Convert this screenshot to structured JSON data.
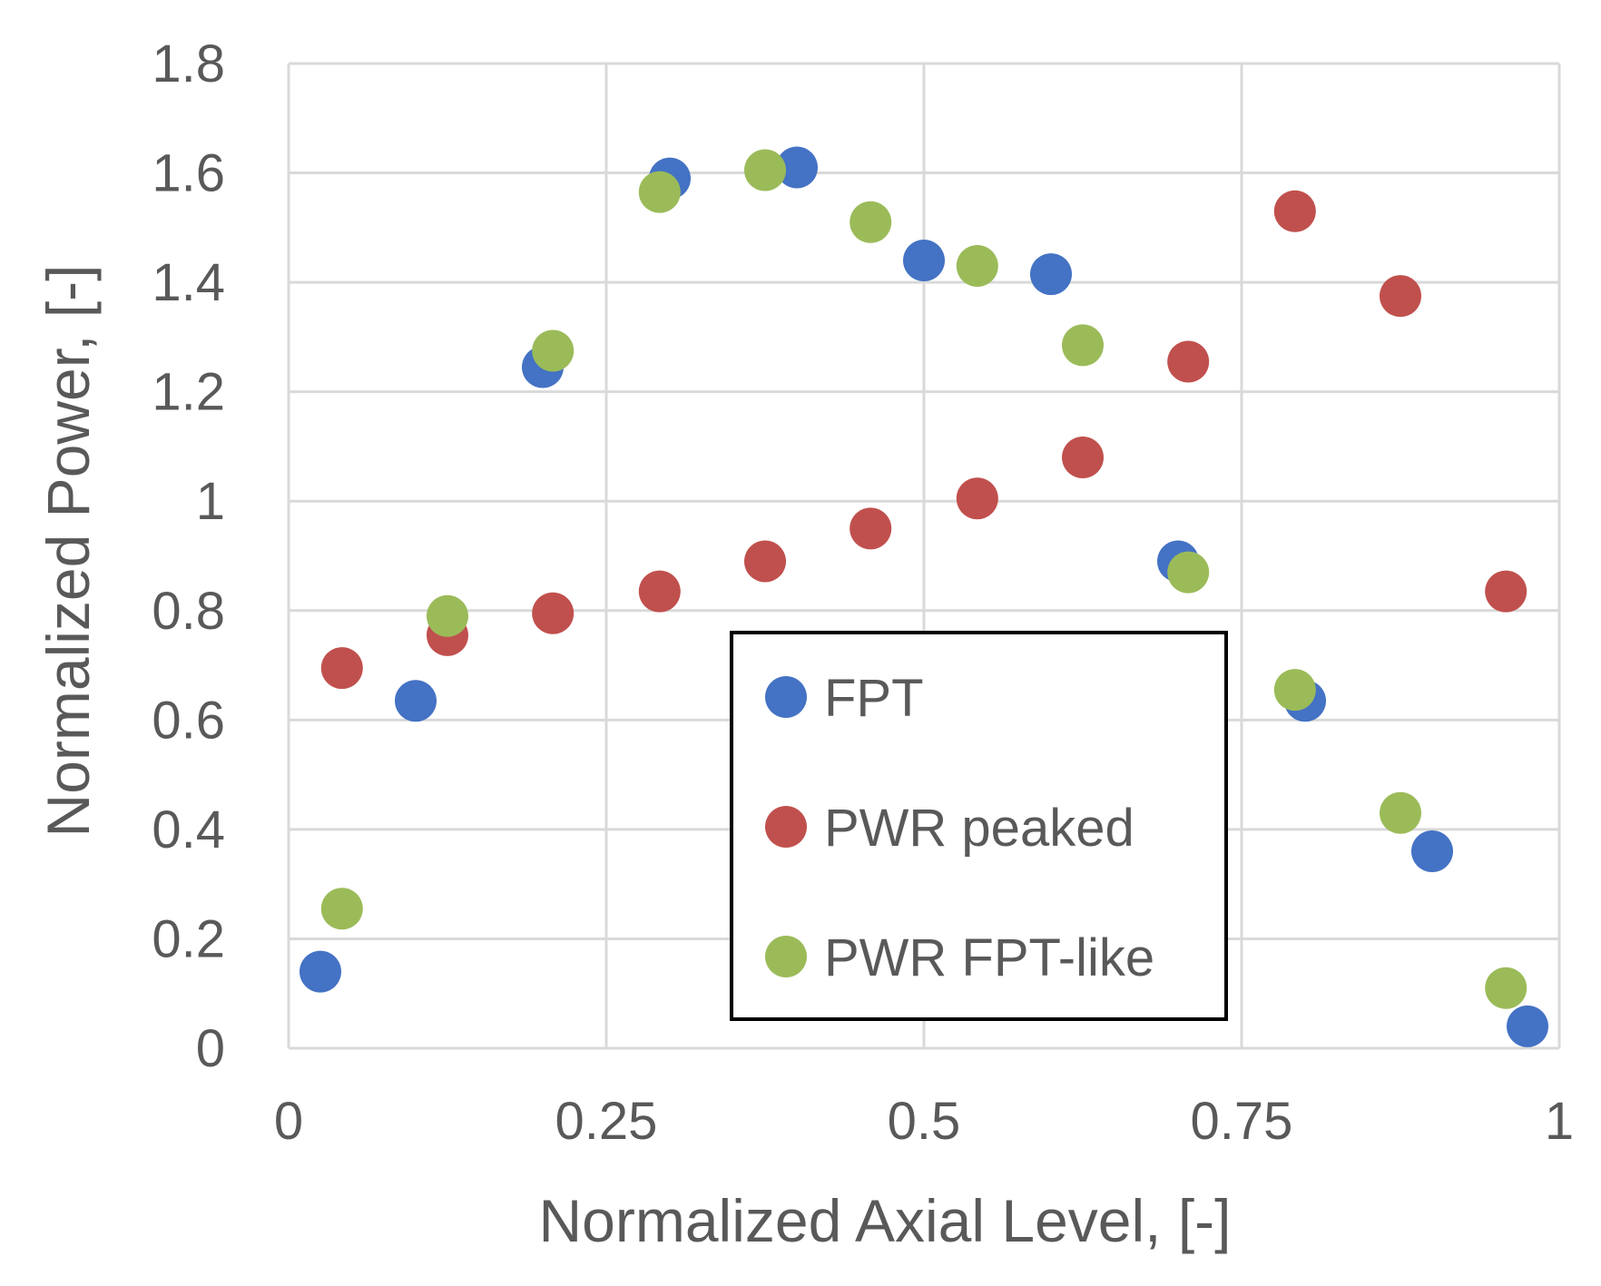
{
  "chart_data": {
    "type": "scatter",
    "title": "",
    "xlabel": "Normalized Axial Level, [-]",
    "ylabel": "Normalized Power, [-]",
    "xlim": [
      0,
      1
    ],
    "ylim": [
      0,
      1.8
    ],
    "x_ticks": [
      0,
      0.25,
      0.5,
      0.75,
      1
    ],
    "x_tick_labels": [
      "0",
      "0.25",
      "0.5",
      "0.75",
      "1"
    ],
    "y_ticks": [
      0,
      0.2,
      0.4,
      0.6,
      0.8,
      1,
      1.2,
      1.4,
      1.6,
      1.8
    ],
    "y_tick_labels": [
      "0",
      "0.2",
      "0.4",
      "0.6",
      "0.8",
      "1",
      "1.2",
      "1.4",
      "1.6",
      "1.8"
    ],
    "grid": true,
    "legend_position": "center-right",
    "series": [
      {
        "name": "FPT",
        "color": "#4472c4",
        "points": [
          [
            0.025,
            0.14
          ],
          [
            0.1,
            0.635
          ],
          [
            0.2,
            1.245
          ],
          [
            0.3,
            1.59
          ],
          [
            0.4,
            1.61
          ],
          [
            0.5,
            1.44
          ],
          [
            0.6,
            1.415
          ],
          [
            0.7,
            0.89
          ],
          [
            0.8,
            0.635
          ],
          [
            0.9,
            0.36
          ],
          [
            0.975,
            0.04
          ]
        ]
      },
      {
        "name": "PWR peaked",
        "color": "#c0504d",
        "points": [
          [
            0.042,
            0.695
          ],
          [
            0.125,
            0.755
          ],
          [
            0.208,
            0.795
          ],
          [
            0.292,
            0.835
          ],
          [
            0.375,
            0.89
          ],
          [
            0.458,
            0.95
          ],
          [
            0.542,
            1.005
          ],
          [
            0.625,
            1.08
          ],
          [
            0.708,
            1.255
          ],
          [
            0.792,
            1.53
          ],
          [
            0.875,
            1.375
          ],
          [
            0.958,
            0.835
          ]
        ]
      },
      {
        "name": "PWR FPT-like",
        "color": "#9bbb59",
        "points": [
          [
            0.042,
            0.255
          ],
          [
            0.125,
            0.79
          ],
          [
            0.208,
            1.275
          ],
          [
            0.292,
            1.565
          ],
          [
            0.375,
            1.605
          ],
          [
            0.458,
            1.51
          ],
          [
            0.542,
            1.43
          ],
          [
            0.625,
            1.285
          ],
          [
            0.708,
            0.87
          ],
          [
            0.792,
            0.655
          ],
          [
            0.875,
            0.43
          ],
          [
            0.958,
            0.11
          ]
        ]
      }
    ]
  }
}
